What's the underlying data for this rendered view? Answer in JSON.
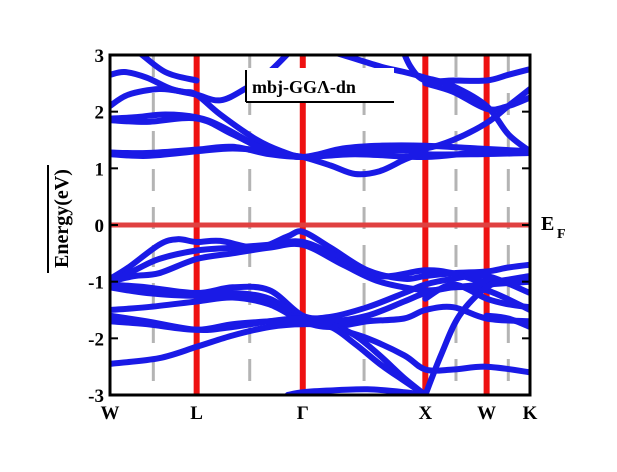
{
  "chart_data": {
    "type": "line",
    "title": "mbj-GGΛ-dn",
    "ylabel": "Energy(eV)",
    "fermi_label": {
      "main": "E",
      "sub": "F"
    },
    "ylim": [
      -3,
      3
    ],
    "yticks": [
      3,
      2,
      1,
      0,
      -1,
      -2,
      -3
    ],
    "kpoints": [
      {
        "label": "W",
        "x": 0
      },
      {
        "label": "L",
        "x": 0.707
      },
      {
        "label": "Γ",
        "x": 1.573
      },
      {
        "label": "X",
        "x": 2.573
      },
      {
        "label": "W",
        "x": 3.073
      },
      {
        "label": "K",
        "x": 3.427
      }
    ],
    "xlim": [
      0,
      3.427
    ],
    "colors": {
      "bands": "#1a1ae6",
      "symmetry_lines": "#ee1111",
      "fermi_line": "#e04040",
      "dashed_guides": "#b4b4b4"
    },
    "fermi_level": 0,
    "series": [
      {
        "x": [
          0,
          0.2,
          0.45,
          0.707
        ],
        "y": [
          3.3,
          3.1,
          2.7,
          2.55
        ]
      },
      {
        "x": [
          0,
          0.12,
          0.3,
          0.5,
          0.707,
          0.9,
          1.1,
          1.3,
          1.573
        ],
        "y": [
          2.65,
          2.7,
          2.6,
          2.4,
          2.3,
          2.2,
          2.4,
          2.7,
          3.3
        ]
      },
      {
        "x": [
          0,
          0.15,
          0.4,
          0.6,
          0.707,
          0.9,
          1.2,
          1.4,
          1.573,
          1.8,
          2.1,
          2.4,
          2.573,
          2.8,
          3.073,
          3.25,
          3.427
        ],
        "y": [
          2.1,
          2.3,
          2.4,
          2.35,
          2.3,
          1.95,
          1.5,
          1.3,
          1.2,
          1.25,
          1.3,
          1.35,
          1.35,
          1.5,
          1.8,
          2.1,
          2.4
        ]
      },
      {
        "x": [
          0,
          0.2,
          0.45,
          0.707,
          0.9,
          1.2,
          1.4,
          1.573,
          1.8,
          2.0,
          2.2,
          2.4,
          2.573
        ],
        "y": [
          1.88,
          1.9,
          1.95,
          1.9,
          1.75,
          1.4,
          1.25,
          1.2,
          1.05,
          0.9,
          0.95,
          1.15,
          1.3
        ]
      },
      {
        "x": [
          0,
          0.3,
          0.707,
          1.0,
          1.3,
          1.573,
          2.0,
          2.573,
          3.0,
          3.427
        ],
        "y": [
          1.85,
          1.82,
          1.88,
          1.6,
          1.3,
          1.2,
          1.25,
          1.2,
          1.28,
          1.3
        ]
      },
      {
        "x": [
          0,
          0.3,
          0.707,
          1.0,
          1.3,
          1.573,
          1.9,
          2.2,
          2.573,
          3.0,
          3.427
        ],
        "y": [
          1.25,
          1.22,
          1.3,
          1.35,
          1.3,
          1.2,
          1.35,
          1.4,
          1.4,
          1.35,
          1.3
        ]
      },
      {
        "x": [
          0,
          0.3,
          0.707,
          1.0,
          1.3,
          1.573,
          1.8,
          2.1,
          2.4,
          2.573,
          3.0,
          3.427
        ],
        "y": [
          1.28,
          1.27,
          1.33,
          1.38,
          1.25,
          1.2,
          1.25,
          1.3,
          1.32,
          1.25,
          1.25,
          1.27
        ]
      },
      {
        "x": [
          1.573,
          1.9,
          2.2,
          2.4,
          2.573,
          2.8,
          3.073,
          3.25,
          3.427
        ],
        "y": [
          3.2,
          3.0,
          2.8,
          2.7,
          2.6,
          2.45,
          2.1,
          1.6,
          1.3
        ]
      },
      {
        "x": [
          2.35,
          2.45,
          2.573,
          2.8,
          3.073,
          3.25,
          3.427
        ],
        "y": [
          3.3,
          2.8,
          2.55,
          2.55,
          2.55,
          2.65,
          2.75
        ]
      },
      {
        "x": [
          2.573,
          2.8,
          3.073,
          3.25,
          3.427
        ],
        "y": [
          2.5,
          2.35,
          2.05,
          2.1,
          2.25
        ]
      },
      {
        "x": [
          0,
          0.15,
          0.4,
          0.55,
          0.707,
          0.9,
          1.2,
          1.45,
          1.573,
          1.8,
          2.1,
          2.4,
          2.573,
          2.8,
          3.073,
          3.25,
          3.427
        ],
        "y": [
          -0.95,
          -0.75,
          -0.35,
          -0.25,
          -0.3,
          -0.28,
          -0.4,
          -0.2,
          -0.12,
          -0.4,
          -0.8,
          -0.95,
          -0.9,
          -0.85,
          -0.82,
          -0.75,
          -0.7
        ]
      },
      {
        "x": [
          0,
          0.2,
          0.4,
          0.707,
          1.0,
          1.3,
          1.573,
          1.9,
          2.2,
          2.573,
          2.8,
          3.073,
          3.427
        ],
        "y": [
          -1.0,
          -0.8,
          -0.6,
          -0.45,
          -0.4,
          -0.35,
          -0.3,
          -0.6,
          -0.9,
          -0.8,
          -0.85,
          -1.0,
          -0.9
        ]
      },
      {
        "x": [
          0,
          0.2,
          0.4,
          0.707,
          1.0,
          1.3,
          1.573,
          1.9,
          2.2,
          2.573,
          2.8,
          3.073,
          3.427
        ],
        "y": [
          -1.0,
          -0.9,
          -0.85,
          -0.6,
          -0.5,
          -0.4,
          -0.35,
          -0.7,
          -1.0,
          -1.15,
          -1.1,
          -1.05,
          -1.0
        ]
      },
      {
        "x": [
          0,
          0.3,
          0.707,
          1.0,
          1.3,
          1.573,
          1.8,
          2.1,
          2.4,
          2.573,
          2.8,
          3.073,
          3.427
        ],
        "y": [
          -1.05,
          -1.1,
          -1.2,
          -1.1,
          -1.15,
          -1.6,
          -1.62,
          -1.45,
          -1.2,
          -1.05,
          -0.95,
          -0.9,
          -1.2
        ]
      },
      {
        "x": [
          0,
          0.3,
          0.707,
          1.0,
          1.3,
          1.573,
          1.8,
          2.1,
          2.4,
          2.573,
          2.8,
          3.073,
          3.427
        ],
        "y": [
          -1.1,
          -1.2,
          -1.25,
          -1.2,
          -1.3,
          -1.65,
          -1.7,
          -1.6,
          -1.35,
          -1.2,
          -1.1,
          -1.15,
          -1.5
        ]
      },
      {
        "x": [
          0,
          0.3,
          0.707,
          1.0,
          1.3,
          1.573,
          1.8,
          2.1,
          2.4,
          2.573,
          2.8,
          3.073,
          3.427
        ],
        "y": [
          -1.5,
          -1.45,
          -1.35,
          -1.28,
          -1.4,
          -1.7,
          -1.8,
          -1.7,
          -1.65,
          -1.5,
          -1.45,
          -1.65,
          -1.7
        ]
      },
      {
        "x": [
          0,
          0.3,
          0.707,
          1.0,
          1.3,
          1.573,
          1.8,
          2.1,
          2.4,
          2.573,
          2.8,
          3.073,
          3.427
        ],
        "y": [
          -1.6,
          -1.7,
          -1.85,
          -1.8,
          -1.7,
          -1.65,
          -1.8,
          -2.0,
          -2.3,
          -2.55,
          -2.55,
          -2.5,
          -2.6
        ]
      },
      {
        "x": [
          0,
          0.3,
          0.707,
          1.0,
          1.3,
          1.573,
          1.8,
          2.0,
          2.2,
          2.4,
          2.573
        ],
        "y": [
          -1.7,
          -1.75,
          -1.85,
          -1.75,
          -1.7,
          -1.65,
          -1.75,
          -1.95,
          -2.3,
          -2.7,
          -3.0
        ]
      },
      {
        "x": [
          0,
          0.4,
          0.707,
          1.0,
          1.3,
          1.573,
          1.8,
          2.0,
          2.2,
          2.4,
          2.573
        ],
        "y": [
          -2.45,
          -2.35,
          -2.15,
          -1.95,
          -1.8,
          -1.75,
          -1.8,
          -2.1,
          -2.45,
          -2.75,
          -3.0
        ]
      },
      {
        "x": [
          2.573,
          2.7,
          2.85,
          3.073,
          3.25,
          3.427
        ],
        "y": [
          -3.0,
          -2.3,
          -1.6,
          -1.1,
          -1.0,
          -1.0
        ]
      },
      {
        "x": [
          2.573,
          2.8,
          3.073,
          3.25,
          3.427
        ],
        "y": [
          -1.3,
          -1.05,
          -1.3,
          -1.4,
          -1.45
        ]
      },
      {
        "x": [
          3.073,
          3.25,
          3.427
        ],
        "y": [
          -1.6,
          -1.65,
          -1.8
        ]
      },
      {
        "x": [
          1.45,
          1.573,
          1.8,
          2.1,
          2.4,
          2.573
        ],
        "y": [
          -3.0,
          -2.95,
          -2.92,
          -2.9,
          -2.95,
          -3.0
        ]
      }
    ]
  }
}
